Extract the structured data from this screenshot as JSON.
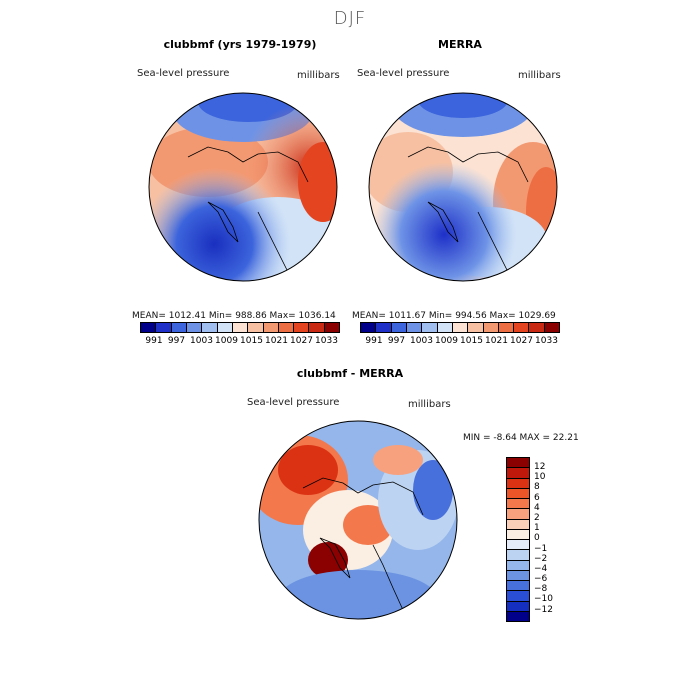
{
  "title": "DJF",
  "panel_left": {
    "title": "clubbmf (yrs 1979-1979)",
    "variable": "Sea-level pressure",
    "units": "millibars",
    "stats": "MEAN=  1012.41   Min=  988.86   Max=  1036.14"
  },
  "panel_right": {
    "title": "MERRA",
    "variable": "Sea-level pressure",
    "units": "millibars",
    "stats": "MEAN=  1011.67   Min=  994.56   Max=  1029.69"
  },
  "panel_diff": {
    "title": "clubbmf - MERRA",
    "variable": "Sea-level pressure",
    "units": "millibars",
    "stats": "MIN =    -8.64  MAX =   22.21"
  },
  "colorbar_abs": {
    "colors": [
      "#00008b",
      "#1e30c8",
      "#3c64dc",
      "#6e93e6",
      "#a0bff0",
      "#d2e3f7",
      "#fbe2d3",
      "#f7c0a2",
      "#f39972",
      "#ee6e44",
      "#e44420",
      "#c92812",
      "#8b0000"
    ],
    "ticks": [
      "991",
      "997",
      "1003",
      "1009",
      "1015",
      "1021",
      "1027",
      "1033"
    ]
  },
  "colorbar_diff": {
    "colors": [
      "#8b0000",
      "#c0180a",
      "#dc3214",
      "#ec5528",
      "#f3784c",
      "#f7a17f",
      "#fbd0b9",
      "#fbeee3",
      "#e3ecf8",
      "#bcd3f2",
      "#94b6ea",
      "#6b93e2",
      "#4870dc",
      "#2a4fd6",
      "#1530c0",
      "#00008b"
    ],
    "labels": [
      "12",
      "10",
      "8",
      "6",
      "4",
      "2",
      "1",
      "0",
      "−1",
      "−2",
      "−4",
      "−6",
      "−8",
      "−10",
      "−12"
    ]
  }
}
